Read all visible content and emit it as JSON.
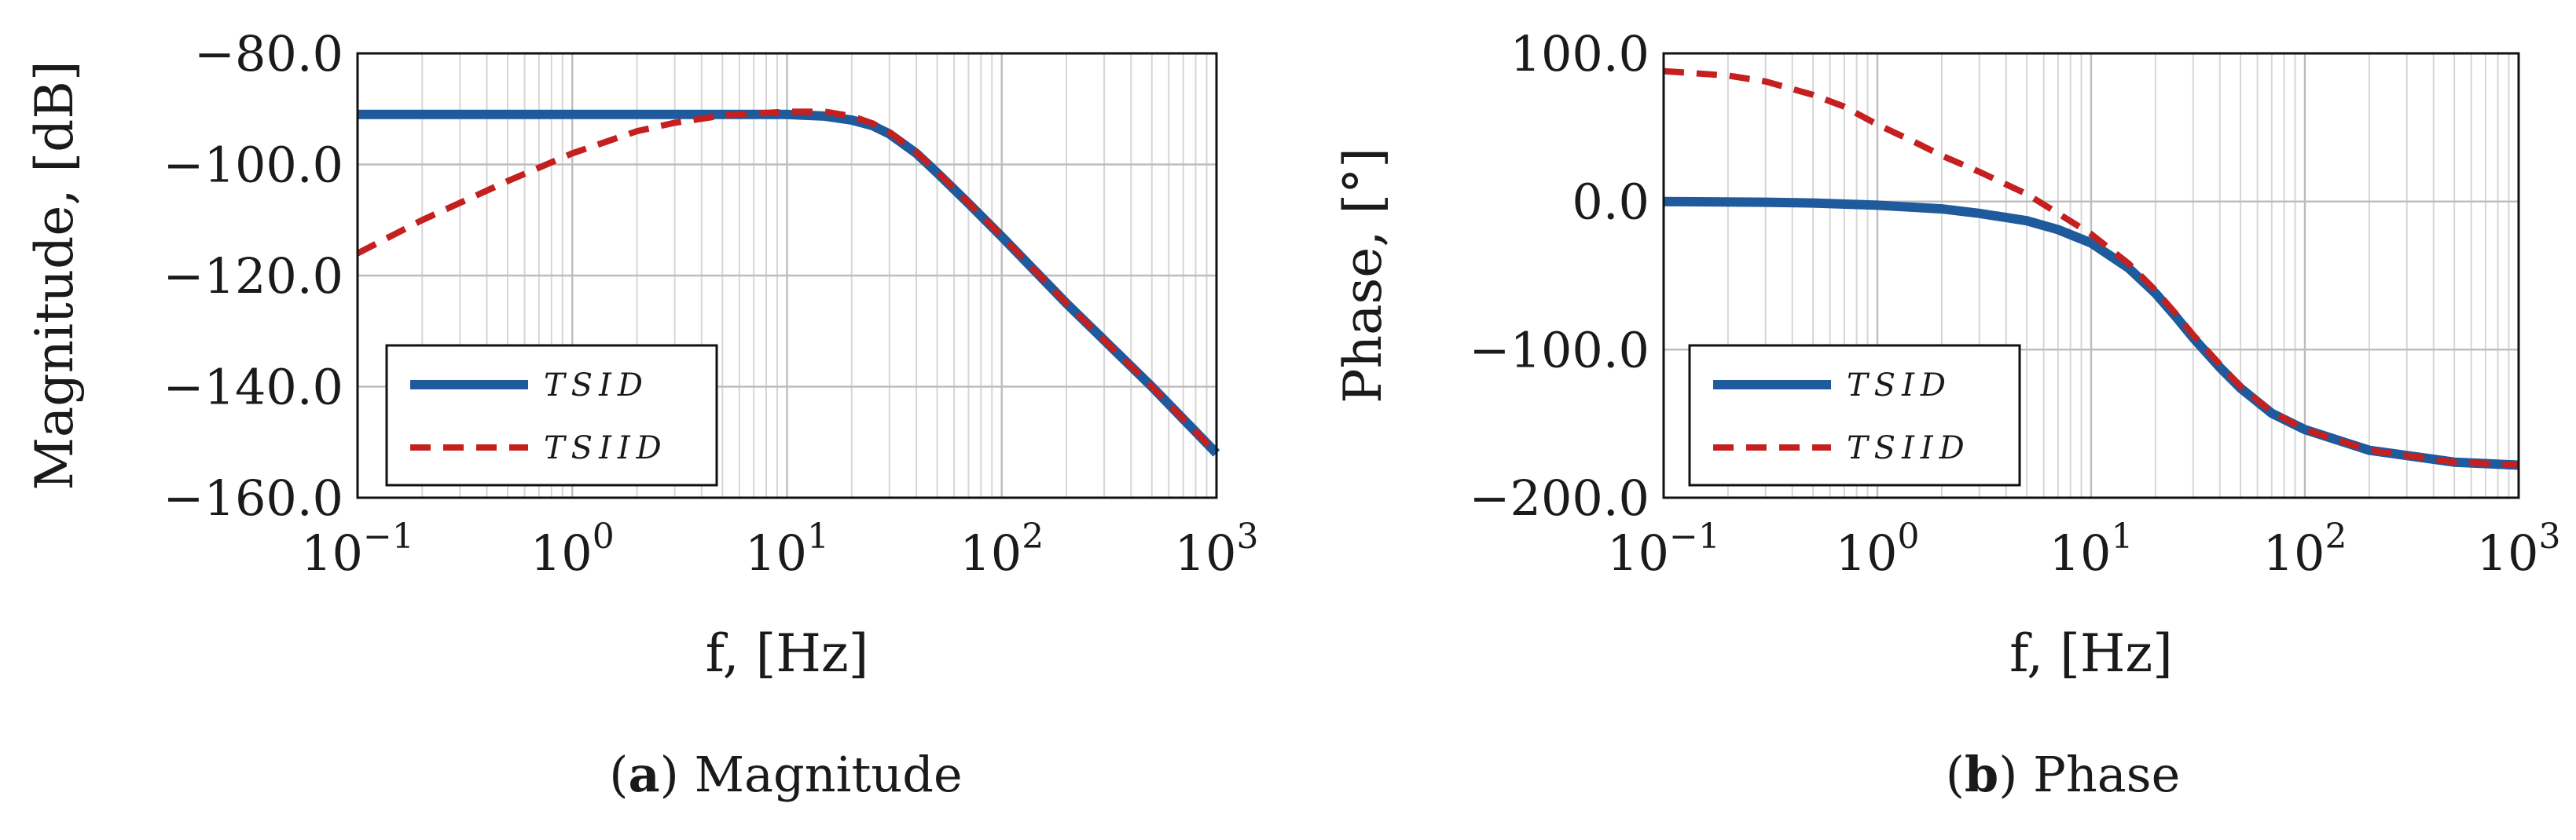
{
  "chart_data": [
    {
      "type": "line",
      "caption_letter": "a",
      "caption_text": "Magnitude",
      "xlabel": "f, [Hz]",
      "ylabel": "Magnitude, [dB]",
      "xscale": "log",
      "xlim": [
        0.1,
        1000
      ],
      "ylim": [
        -160,
        -80
      ],
      "x_ticks": [
        0.1,
        1,
        10,
        100,
        1000
      ],
      "x_tick_labels": [
        {
          "base": "10",
          "exp": "−1"
        },
        {
          "base": "10",
          "exp": "0"
        },
        {
          "base": "10",
          "exp": "1"
        },
        {
          "base": "10",
          "exp": "2"
        },
        {
          "base": "10",
          "exp": "3"
        }
      ],
      "y_ticks": [
        -80,
        -100,
        -120,
        -140,
        -160
      ],
      "y_tick_labels": [
        "−80.0",
        "−100.0",
        "−120.0",
        "−140.0",
        "−160.0"
      ],
      "grid": true,
      "legend": "bottom-left",
      "series": [
        {
          "name": "TSID",
          "color": "#1f5a9c",
          "style": "solid",
          "x": [
            0.1,
            1,
            5,
            10,
            15,
            20,
            25,
            30,
            40,
            50,
            70,
            100,
            200,
            500,
            1000
          ],
          "y": [
            -91,
            -91,
            -91,
            -91,
            -91.3,
            -92,
            -93,
            -94.5,
            -98,
            -101.5,
            -107,
            -113,
            -125,
            -140,
            -152
          ]
        },
        {
          "name": "TSIID",
          "color": "#c42020",
          "style": "dashed",
          "x": [
            0.1,
            0.2,
            0.5,
            1,
            2,
            3,
            5,
            10,
            15,
            20,
            25,
            30,
            40,
            50,
            70,
            100,
            200,
            500,
            1000
          ],
          "y": [
            -116,
            -110,
            -103,
            -98,
            -94,
            -92.5,
            -91.2,
            -90.5,
            -90.5,
            -91.3,
            -92.6,
            -94.2,
            -97.8,
            -101.3,
            -106.9,
            -112.9,
            -125,
            -140,
            -152
          ]
        }
      ]
    },
    {
      "type": "line",
      "caption_letter": "b",
      "caption_text": "Phase",
      "xlabel": "f, [Hz]",
      "ylabel": "Phase, [°]",
      "xscale": "log",
      "xlim": [
        0.1,
        1000
      ],
      "ylim": [
        -200,
        100
      ],
      "x_ticks": [
        0.1,
        1,
        10,
        100,
        1000
      ],
      "x_tick_labels": [
        {
          "base": "10",
          "exp": "−1"
        },
        {
          "base": "10",
          "exp": "0"
        },
        {
          "base": "10",
          "exp": "1"
        },
        {
          "base": "10",
          "exp": "2"
        },
        {
          "base": "10",
          "exp": "3"
        }
      ],
      "y_ticks": [
        100,
        0,
        -100,
        -200
      ],
      "y_tick_labels": [
        "100.0",
        "0.0",
        "−100.0",
        "−200.0"
      ],
      "grid": true,
      "legend": "bottom-left",
      "series": [
        {
          "name": "TSID",
          "color": "#1f5a9c",
          "style": "solid",
          "x": [
            0.1,
            0.3,
            0.5,
            1,
            2,
            3,
            5,
            7,
            10,
            15,
            20,
            25,
            30,
            40,
            50,
            70,
            100,
            200,
            500,
            1000
          ],
          "y": [
            0,
            -0.5,
            -1,
            -2.5,
            -5,
            -8,
            -13,
            -19,
            -28,
            -45,
            -62,
            -78,
            -92,
            -112,
            -126,
            -143,
            -154,
            -168,
            -176,
            -178
          ]
        },
        {
          "name": "TSIID",
          "color": "#c42020",
          "style": "dashed",
          "x": [
            0.1,
            0.2,
            0.3,
            0.5,
            0.7,
            1,
            1.5,
            2,
            3,
            5,
            7,
            10,
            15,
            20,
            25,
            30,
            40,
            50,
            70,
            100,
            200,
            500,
            1000
          ],
          "y": [
            88,
            85,
            81,
            72,
            64,
            52,
            40,
            31,
            20,
            5,
            -8,
            -22,
            -42,
            -60,
            -76,
            -90,
            -110,
            -125,
            -142,
            -154,
            -168,
            -176,
            -178
          ]
        }
      ]
    }
  ]
}
